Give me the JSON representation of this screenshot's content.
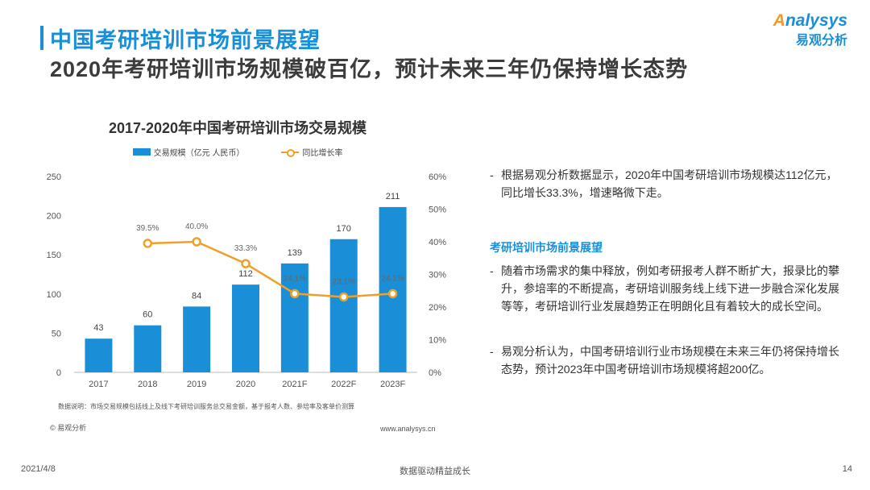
{
  "header": {
    "title": "中国考研培训市场前景展望",
    "subtitle": "2020年考研培训市场规模破百亿，预计未来三年仍保持增长态势"
  },
  "logo": {
    "brand_first": "A",
    "brand_rest": "nalysys",
    "brand_cn": "易观分析"
  },
  "chart_data": {
    "type": "bar",
    "title": "2017-2020年中国考研培训市场交易规模",
    "categories": [
      "2017",
      "2018",
      "2019",
      "2020",
      "2021F",
      "2022F",
      "2023F"
    ],
    "series": [
      {
        "name": "交易规模（亿元 人民币）",
        "type": "bar",
        "axis": "left",
        "values": [
          43,
          60,
          84,
          112,
          139,
          170,
          211
        ]
      },
      {
        "name": "同比增长率",
        "type": "line",
        "axis": "right",
        "values": [
          null,
          39.5,
          40.0,
          33.3,
          24.1,
          23.1,
          24.1
        ],
        "labels": [
          "",
          "39.5%",
          "40.0%",
          "33.3%",
          "24.1%",
          "23.1%",
          "24.1%"
        ]
      }
    ],
    "y_left": {
      "min": 0,
      "max": 250,
      "ticks": [
        "0",
        "50",
        "100",
        "150",
        "200",
        "250"
      ]
    },
    "y_right": {
      "min": 0,
      "max": 60,
      "ticks": [
        "0%",
        "10%",
        "20%",
        "30%",
        "40%",
        "50%",
        "60%"
      ]
    },
    "colors": {
      "bar": "#1a8fd8",
      "line": "#f0a027"
    },
    "grid": false,
    "legend": "top-center",
    "note": "数据说明：市场交易规模包括线上及线下考研培训服务总交易金额，基于报考人数、参培率及客单价测算",
    "copyright": "© 易观分析",
    "website": "www.analysys.cn"
  },
  "right_panel": {
    "para1": "根据易观分析数据显示，2020年中国考研培训市场规模达112亿元，同比增长33.3%，增速略微下走。",
    "section_title": "考研培训市场前景展望",
    "para2": "随着市场需求的集中释放，例如考研报考人群不断扩大，报录比的攀升，参培率的不断提高，考研培训服务线上线下进一步融合深化发展等等，考研培训行业发展趋势正在明朗化且有着较大的成长空间。",
    "para3": "易观分析认为，中国考研培训行业市场规模在未来三年仍将保持增长态势，预计2023年中国考研培训市场规模将超200亿。",
    "dash": "-"
  },
  "footer": {
    "date": "2021/4/8",
    "slogan": "数据驱动精益成长",
    "page": "14"
  }
}
